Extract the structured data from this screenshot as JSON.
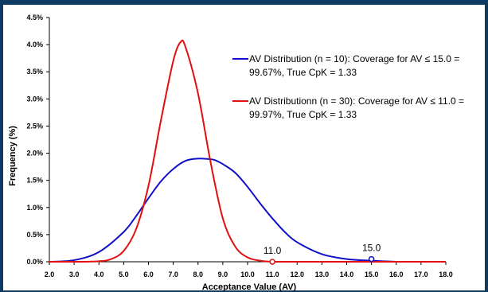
{
  "chart_data": {
    "type": "line",
    "xlabel": "Acceptance Value (AV)",
    "ylabel": "Frequency (%)",
    "xlim": [
      2.0,
      18.0
    ],
    "ylim": [
      0,
      4.5
    ],
    "x_ticks": [
      "2.0",
      "3.0",
      "4.0",
      "5.0",
      "6.0",
      "7.0",
      "8.0",
      "9.0",
      "10.0",
      "11.0",
      "12.0",
      "13.0",
      "14.0",
      "15.0",
      "16.0",
      "17.0",
      "18.0"
    ],
    "y_ticks": [
      "0.0%",
      "0.5%",
      "1.0%",
      "1.5%",
      "2.0%",
      "2.5%",
      "3.0%",
      "3.5%",
      "4.0%",
      "4.5%"
    ],
    "grid": false,
    "legend_position": "top-right",
    "series": [
      {
        "name": "AV Distribution (n = 10): Coverage for AV ≤ 15.0 = 99.67%, True CpK = 1.33",
        "legend_lines": [
          "AV Distribution (n = 10): Coverage for AV ≤ 15.0 =",
          "99.67%, True CpK = 1.33"
        ],
        "color": "#1010c8",
        "x": [
          2.0,
          3.0,
          4.0,
          5.0,
          5.5,
          6.0,
          6.5,
          7.0,
          7.5,
          8.0,
          8.5,
          8.7,
          9.0,
          9.5,
          10.0,
          10.5,
          11.0,
          11.5,
          12.0,
          13.0,
          14.0,
          15.0,
          16.0,
          17.0,
          18.0
        ],
        "values": [
          0.0,
          0.03,
          0.18,
          0.55,
          0.84,
          1.17,
          1.48,
          1.71,
          1.86,
          1.9,
          1.89,
          1.87,
          1.8,
          1.64,
          1.38,
          1.08,
          0.8,
          0.55,
          0.36,
          0.14,
          0.05,
          0.02,
          0.0,
          0.0,
          0.0
        ]
      },
      {
        "name": "AV Distributionn (n = 30): Coverage for AV ≤ 11.0 = 99.97%, True CpK = 1.33",
        "legend_lines": [
          "AV Distributionn (n = 30): Coverage for AV ≤ 11.0 =",
          "99.97%, True CpK = 1.33"
        ],
        "color": "#e01010",
        "x": [
          2.0,
          3.0,
          4.0,
          4.5,
          5.0,
          5.5,
          6.0,
          6.5,
          7.0,
          7.3,
          7.5,
          8.0,
          8.5,
          9.0,
          9.5,
          10.0,
          10.5,
          11.0,
          12.0,
          13.0,
          14.0,
          15.0,
          16.0,
          17.0,
          18.0
        ],
        "values": [
          0.0,
          0.0,
          0.01,
          0.05,
          0.2,
          0.6,
          1.4,
          2.6,
          3.7,
          4.05,
          3.95,
          3.1,
          1.85,
          0.8,
          0.28,
          0.08,
          0.02,
          0.0,
          0.0,
          0.0,
          0.0,
          0.0,
          0.0,
          0.0,
          0.0
        ]
      }
    ],
    "annotations": [
      {
        "label": "11.0",
        "x": 11.0,
        "y": 0.0,
        "color": "#e01010"
      },
      {
        "label": "15.0",
        "x": 15.0,
        "y": 0.05,
        "color": "#1010c8"
      }
    ]
  }
}
